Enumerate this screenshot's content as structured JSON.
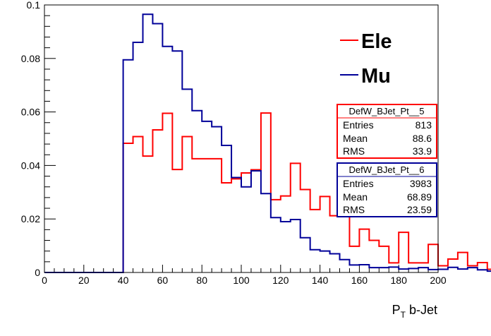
{
  "chart_data": {
    "type": "histogram",
    "xlabel": "P_T b-Jet",
    "xlabel_main": "P",
    "xlabel_sub": "T",
    "xlabel_rest": " b-Jet",
    "xlim": [
      0,
      200
    ],
    "ylim": [
      0,
      0.1
    ],
    "bin_width": 5,
    "x_ticks": [
      "0",
      "20",
      "40",
      "60",
      "80",
      "100",
      "120",
      "140",
      "160",
      "180",
      "200"
    ],
    "y_ticks": [
      "0",
      "0.02",
      "0.04",
      "0.06",
      "0.08",
      "0.1"
    ],
    "series": [
      {
        "name": "Ele",
        "color": "#ff0000",
        "bin_edges_start": 0,
        "values": [
          0,
          0,
          0,
          0,
          0,
          0,
          0,
          0,
          0.0483,
          0.0508,
          0.0435,
          0.0533,
          0.0595,
          0.0385,
          0.0508,
          0.0425,
          0.0425,
          0.0425,
          0.0335,
          0.035,
          0.0372,
          0.0384,
          0.0596,
          0.0272,
          0.0286,
          0.0408,
          0.031,
          0.0235,
          0.0284,
          0.0212,
          0.0228,
          0.0098,
          0.0162,
          0.012,
          0.0098,
          0.0036,
          0.015,
          0.0036,
          0.0036,
          0.0105,
          0.0025,
          0.005,
          0.0075,
          0.0025,
          0.0037,
          0.0012,
          0.0022,
          0.0025,
          0.002,
          0.0012
        ]
      },
      {
        "name": "Mu",
        "color": "#000099",
        "bin_edges_start": 0,
        "values": [
          0,
          0,
          0,
          0,
          0,
          0,
          0,
          0,
          0.0795,
          0.086,
          0.0965,
          0.093,
          0.0845,
          0.0828,
          0.0685,
          0.0605,
          0.0565,
          0.0545,
          0.0475,
          0.0355,
          0.032,
          0.038,
          0.0295,
          0.0205,
          0.019,
          0.0198,
          0.013,
          0.0085,
          0.008,
          0.007,
          0.0048,
          0.0028,
          0.0029,
          0.0018,
          0.0018,
          0.002,
          0.0013,
          0.0015,
          0.0018,
          0.0011,
          0.0012,
          0.0019,
          0.0013,
          0.0018,
          0.001,
          0.0005,
          0.0005,
          0.0007,
          0.0005,
          0.0004
        ]
      }
    ],
    "stats_boxes": [
      {
        "title": "DefW_BJet_Pt__5",
        "color": "#ff0000",
        "rows": [
          {
            "label": "Entries",
            "value": "813"
          },
          {
            "label": "Mean",
            "value": "88.6"
          },
          {
            "label": "RMS",
            "value": "33.9"
          }
        ]
      },
      {
        "title": "DefW_BJet_Pt__6",
        "color": "#000099",
        "rows": [
          {
            "label": "Entries",
            "value": "3983"
          },
          {
            "label": "Mean",
            "value": "68.89"
          },
          {
            "label": "RMS",
            "value": "23.59"
          }
        ]
      }
    ],
    "legend_position": "top-right"
  }
}
